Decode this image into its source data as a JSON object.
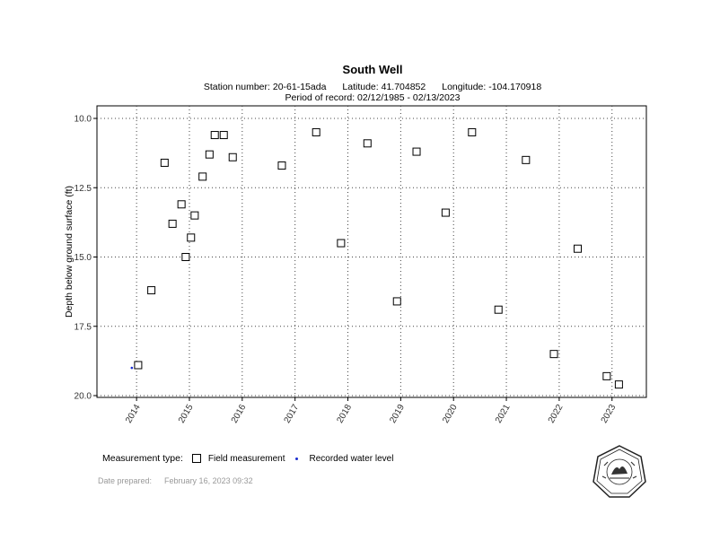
{
  "header": {
    "title": "South Well",
    "station": "Station number: 20-61-15ada",
    "latitude": "Latitude: 41.704852",
    "longitude": "Longitude: -104.170918",
    "period": "Period of record: 02/12/1985 - 02/13/2023"
  },
  "legend": {
    "label": "Measurement type:",
    "field": "Field measurement",
    "recorded": "Recorded water level"
  },
  "footer": {
    "date_label": "Date prepared:",
    "date_value": "February 16, 2023 09:32"
  },
  "chart_data": {
    "type": "scatter",
    "ylabel": "Depth below ground surface (ft)",
    "xlabel": "",
    "xlim": [
      2013.25,
      2023.65
    ],
    "ylim": [
      10.0,
      20.0
    ],
    "y_inverted": true,
    "grid": true,
    "legend_position": "bottom-left",
    "x_ticks": [
      "2014",
      "2015",
      "2016",
      "2017",
      "2018",
      "2019",
      "2020",
      "2021",
      "2022",
      "2023"
    ],
    "y_ticks": [
      "10.0",
      "12.5",
      "15.0",
      "17.5",
      "20.0"
    ],
    "colors": {
      "field": "#000000",
      "recorded": "#1a2ccf"
    },
    "series": [
      {
        "name": "Field measurement",
        "marker": "square",
        "points": [
          [
            2014.03,
            18.9
          ],
          [
            2014.28,
            16.2
          ],
          [
            2014.53,
            11.6
          ],
          [
            2014.68,
            13.8
          ],
          [
            2014.85,
            13.1
          ],
          [
            2014.93,
            15.0
          ],
          [
            2015.03,
            14.3
          ],
          [
            2015.1,
            13.5
          ],
          [
            2015.25,
            12.1
          ],
          [
            2015.38,
            11.3
          ],
          [
            2015.48,
            10.6
          ],
          [
            2015.65,
            10.6
          ],
          [
            2015.82,
            11.4
          ],
          [
            2016.75,
            11.7
          ],
          [
            2017.4,
            10.5
          ],
          [
            2017.87,
            14.5
          ],
          [
            2018.37,
            10.9
          ],
          [
            2018.93,
            16.6
          ],
          [
            2019.3,
            11.2
          ],
          [
            2019.85,
            13.4
          ],
          [
            2020.35,
            10.5
          ],
          [
            2020.85,
            16.9
          ],
          [
            2021.37,
            11.5
          ],
          [
            2021.9,
            18.5
          ],
          [
            2022.35,
            14.7
          ],
          [
            2022.9,
            19.3
          ],
          [
            2023.13,
            19.6
          ]
        ]
      },
      {
        "name": "Recorded water level",
        "marker": "dot",
        "points": [
          [
            2013.91,
            19.0
          ]
        ]
      }
    ]
  }
}
